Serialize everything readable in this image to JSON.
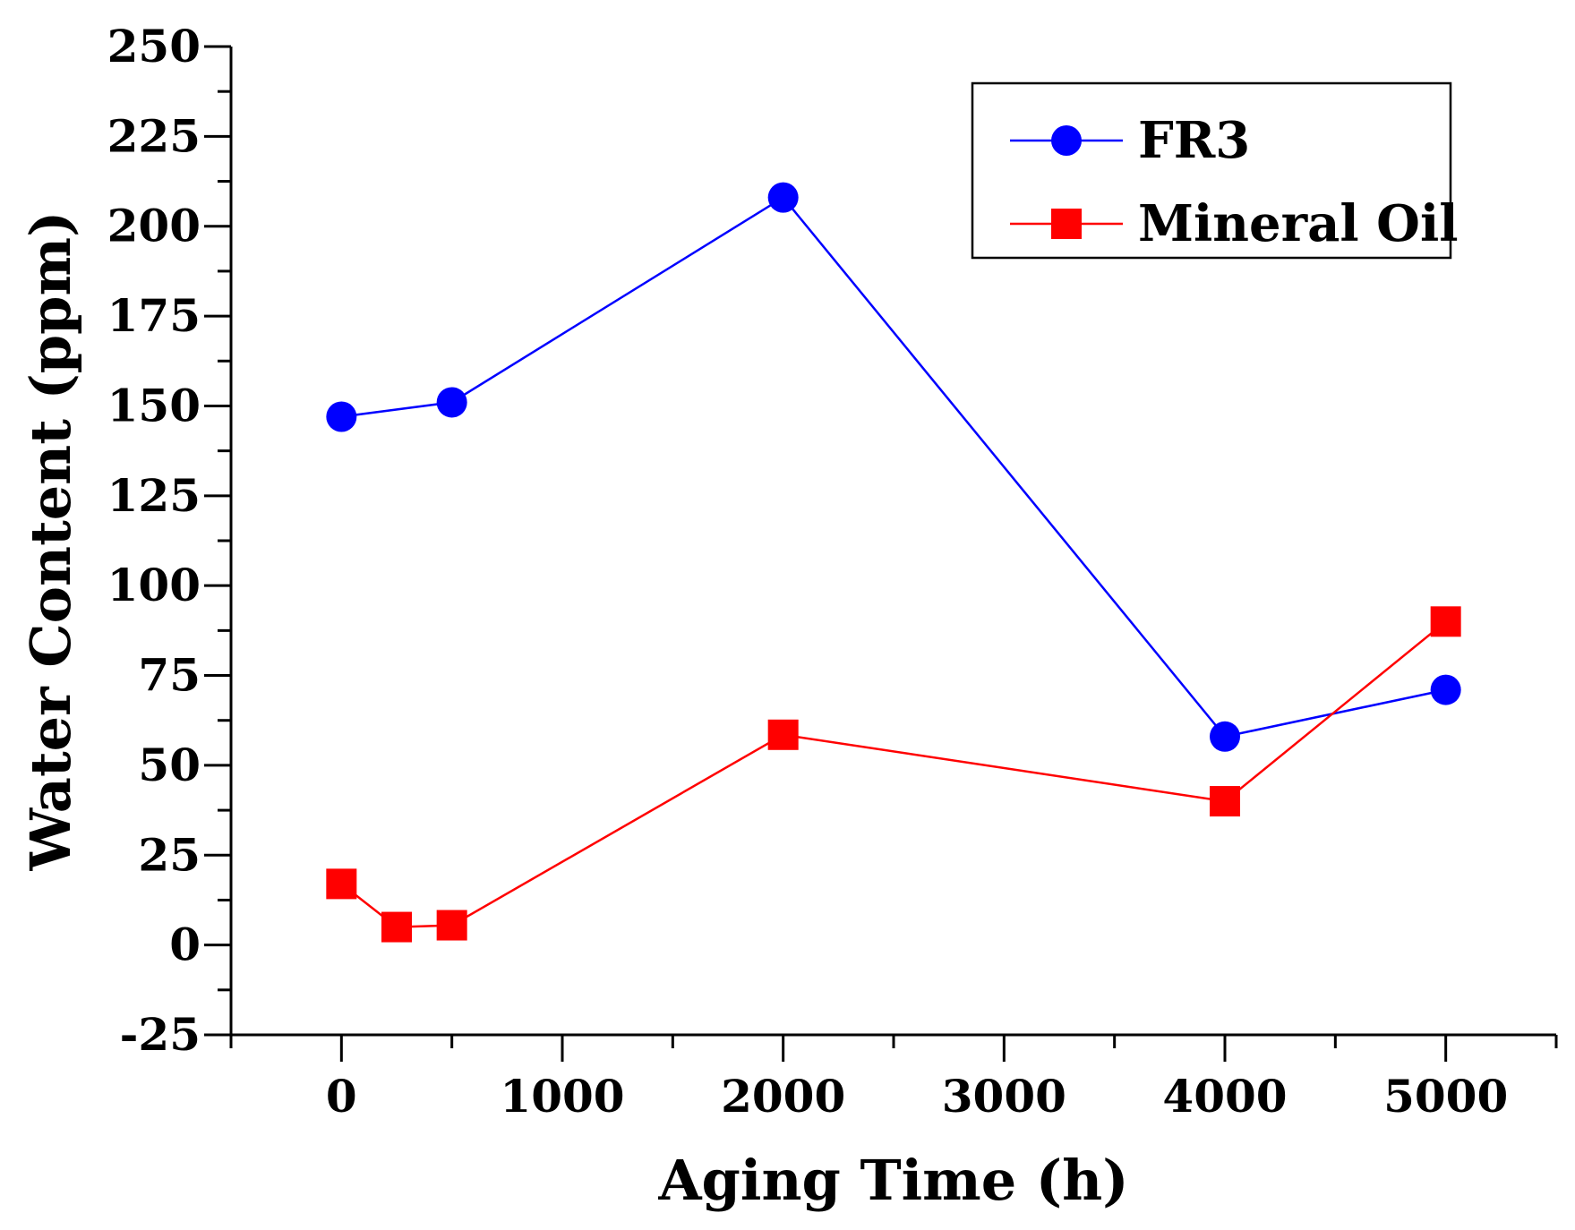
{
  "chart_data": {
    "type": "line",
    "title": "",
    "xlabel": "Aging Time (h)",
    "ylabel": "Water Content (ppm)",
    "xlim": [
      -500,
      5500
    ],
    "ylim": [
      -25,
      250
    ],
    "xticks": [
      0,
      1000,
      2000,
      3000,
      4000,
      5000
    ],
    "xtick_labels": [
      "0",
      "1000",
      "2000",
      "3000",
      "4000",
      "5000"
    ],
    "yticks": [
      -25,
      0,
      25,
      50,
      75,
      100,
      125,
      150,
      175,
      200,
      225,
      250
    ],
    "ytick_labels": [
      "-25",
      "0",
      "25",
      "50",
      "75",
      "100",
      "125",
      "150",
      "175",
      "200",
      "225",
      "250"
    ],
    "grid": false,
    "legend_position": "top-right",
    "series": [
      {
        "name": "FR3",
        "color": "#0000ff",
        "marker": "circle",
        "x": [
          0,
          500,
          2000,
          4000,
          5000
        ],
        "y": [
          147,
          151,
          208,
          58,
          71
        ]
      },
      {
        "name": "Mineral Oil",
        "color": "#ff0000",
        "marker": "square",
        "x": [
          0,
          250,
          500,
          2000,
          4000,
          5000
        ],
        "y": [
          17,
          5,
          5.5,
          58.5,
          40,
          90
        ]
      }
    ]
  }
}
